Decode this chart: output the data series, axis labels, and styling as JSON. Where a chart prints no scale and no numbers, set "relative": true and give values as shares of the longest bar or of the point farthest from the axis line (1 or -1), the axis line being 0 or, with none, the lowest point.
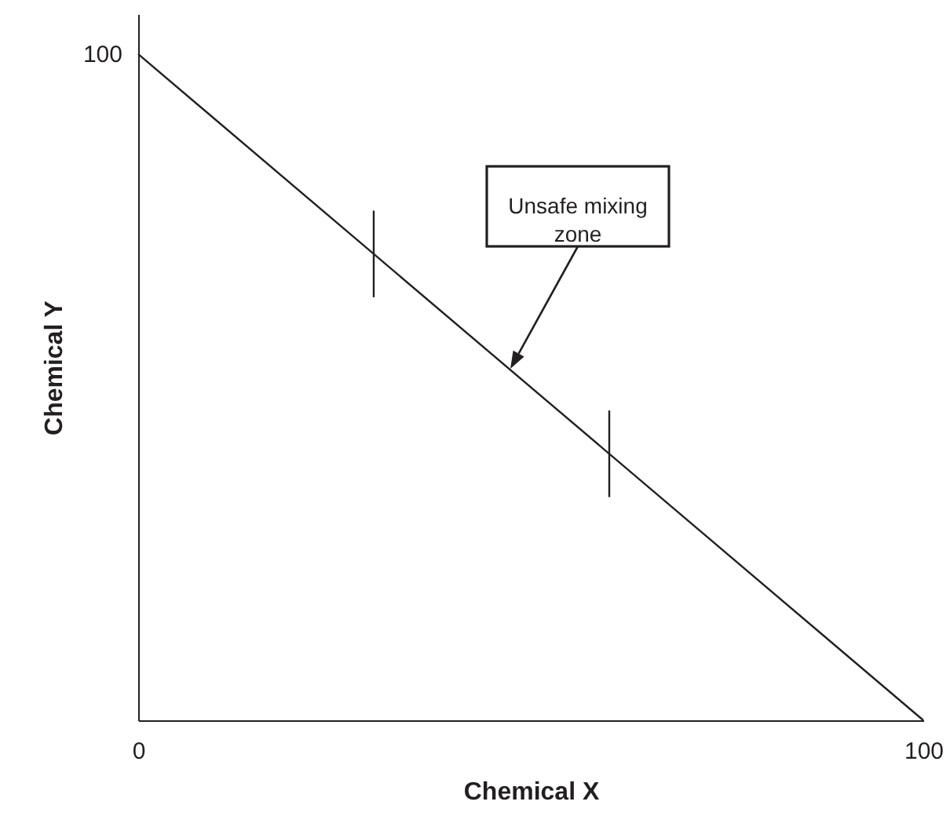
{
  "chart_data": {
    "type": "line",
    "xlabel": "Chemical X",
    "ylabel": "Chemical Y",
    "relative": true,
    "xlim": [
      0,
      100
    ],
    "xticks": [
      0,
      100
    ],
    "grid": false,
    "marker": "none",
    "line_style": "solid",
    "series": [
      {
        "color": "#231f20",
        "x": [
          0,
          100
        ],
        "values": [
          1,
          0
        ]
      },
      {
        "color": "#231f20",
        "x": [
          30,
          30
        ],
        "values": [
          0.765,
          0.635
        ]
      },
      {
        "color": "#231f20",
        "x": [
          60,
          60
        ],
        "values": [
          0.465,
          0.335
        ]
      }
    ],
    "annotations": [
      "100",
      "Unsafe mixing zone"
    ]
  }
}
